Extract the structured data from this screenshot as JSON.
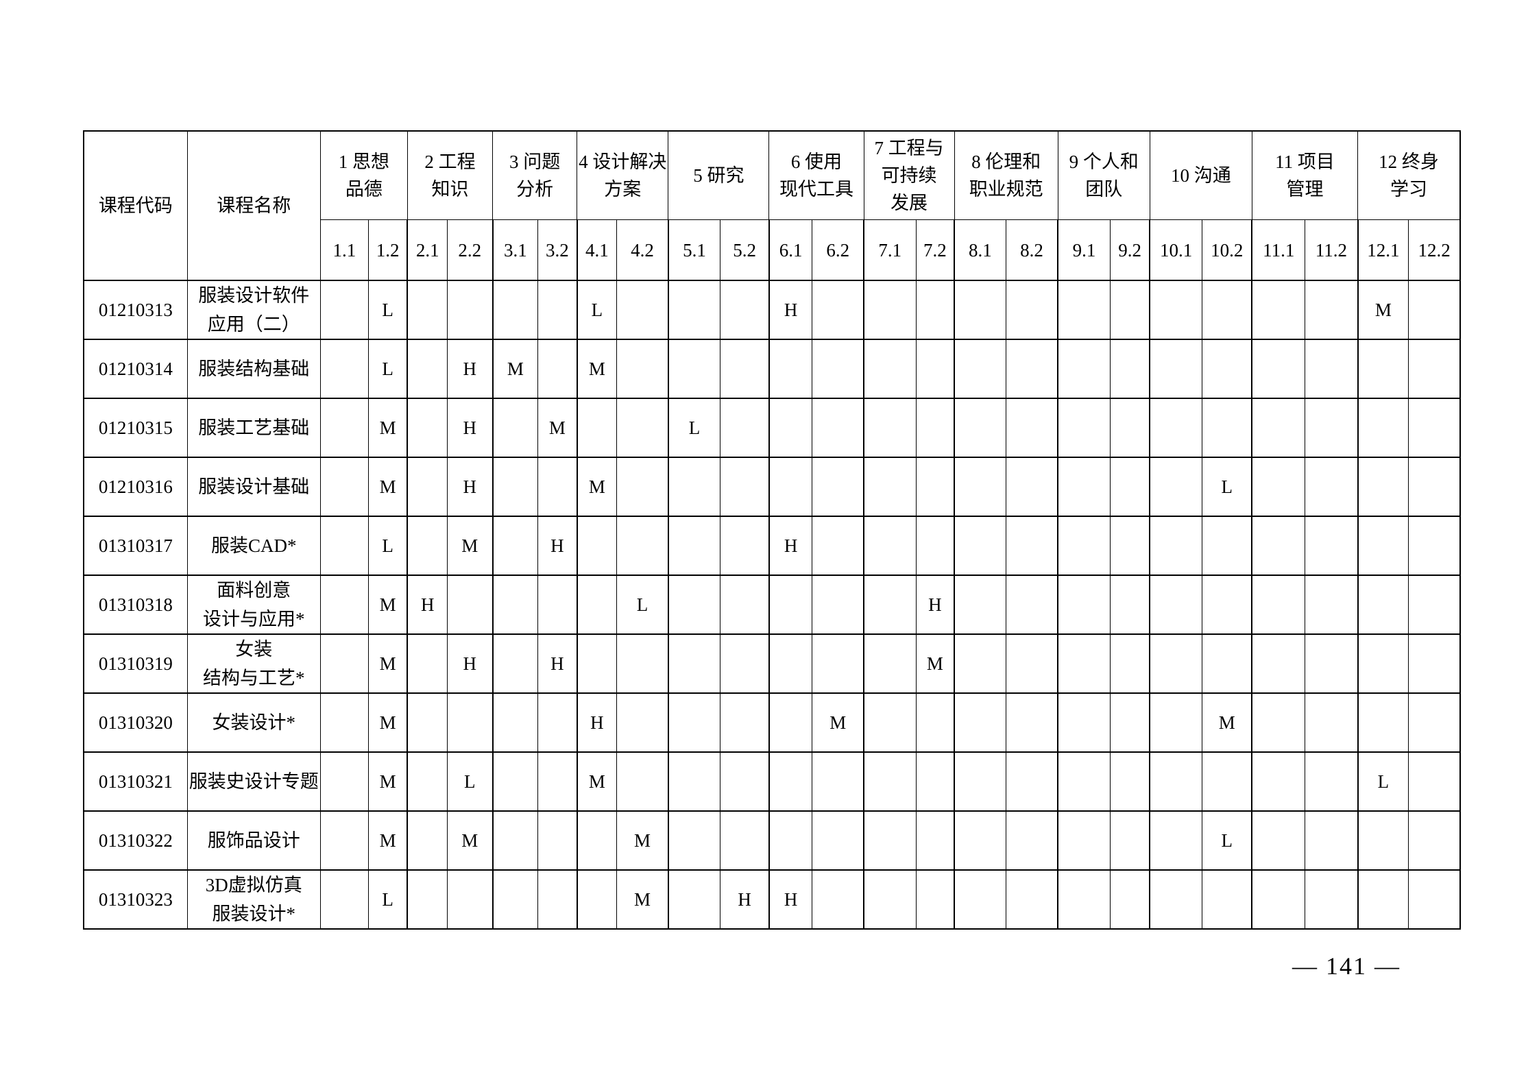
{
  "table": {
    "header": {
      "code_label": "课程代码",
      "name_label": "课程名称",
      "groups": [
        "1 思想\n品德",
        "2 工程\n知识",
        "3 问题\n分析",
        "4 设计解决\n方案",
        "5 研究",
        "6 使用\n现代工具",
        "7 工程与\n可持续\n发展",
        "8 伦理和\n职业规范",
        "9 个人和\n团队",
        "10 沟通",
        "11 项目\n管理",
        "12 终身\n学习"
      ],
      "indicators": [
        "1.1",
        "1.2",
        "2.1",
        "2.2",
        "3.1",
        "3.2",
        "4.1",
        "4.2",
        "5.1",
        "5.2",
        "6.1",
        "6.2",
        "7.1",
        "7.2",
        "8.1",
        "8.2",
        "9.1",
        "9.2",
        "10.1",
        "10.2",
        "11.1",
        "11.2",
        "12.1",
        "12.2"
      ]
    },
    "rows": [
      {
        "code": "01210313",
        "name": "服装设计软件\n应用（二）",
        "marks": [
          "",
          "L",
          "",
          "",
          "",
          "",
          "L",
          "",
          "",
          "",
          "H",
          "",
          "",
          "",
          "",
          "",
          "",
          "",
          "",
          "",
          "",
          "",
          "M",
          ""
        ]
      },
      {
        "code": "01210314",
        "name": "服装结构基础",
        "marks": [
          "",
          "L",
          "",
          "H",
          "M",
          "",
          "M",
          "",
          "",
          "",
          "",
          "",
          "",
          "",
          "",
          "",
          "",
          "",
          "",
          "",
          "",
          "",
          "",
          ""
        ]
      },
      {
        "code": "01210315",
        "name": "服装工艺基础",
        "marks": [
          "",
          "M",
          "",
          "H",
          "",
          "M",
          "",
          "",
          "L",
          "",
          "",
          "",
          "",
          "",
          "",
          "",
          "",
          "",
          "",
          "",
          "",
          "",
          "",
          ""
        ]
      },
      {
        "code": "01210316",
        "name": "服装设计基础",
        "marks": [
          "",
          "M",
          "",
          "H",
          "",
          "",
          "M",
          "",
          "",
          "",
          "",
          "",
          "",
          "",
          "",
          "",
          "",
          "",
          "",
          "L",
          "",
          "",
          "",
          ""
        ]
      },
      {
        "code": "01310317",
        "name": "服装CAD*",
        "marks": [
          "",
          "L",
          "",
          "M",
          "",
          "H",
          "",
          "",
          "",
          "",
          "H",
          "",
          "",
          "",
          "",
          "",
          "",
          "",
          "",
          "",
          "",
          "",
          "",
          ""
        ]
      },
      {
        "code": "01310318",
        "name": "面料创意\n设计与应用*",
        "marks": [
          "",
          "M",
          "H",
          "",
          "",
          "",
          "",
          "L",
          "",
          "",
          "",
          "",
          "",
          "H",
          "",
          "",
          "",
          "",
          "",
          "",
          "",
          "",
          "",
          ""
        ]
      },
      {
        "code": "01310319",
        "name": "女装\n结构与工艺*",
        "marks": [
          "",
          "M",
          "",
          "H",
          "",
          "H",
          "",
          "",
          "",
          "",
          "",
          "",
          "",
          "M",
          "",
          "",
          "",
          "",
          "",
          "",
          "",
          "",
          "",
          ""
        ]
      },
      {
        "code": "01310320",
        "name": "女装设计*",
        "marks": [
          "",
          "M",
          "",
          "",
          "",
          "",
          "H",
          "",
          "",
          "",
          "",
          "M",
          "",
          "",
          "",
          "",
          "",
          "",
          "",
          "M",
          "",
          "",
          "",
          ""
        ]
      },
      {
        "code": "01310321",
        "name": "服装史设计专题",
        "marks": [
          "",
          "M",
          "",
          "L",
          "",
          "",
          "M",
          "",
          "",
          "",
          "",
          "",
          "",
          "",
          "",
          "",
          "",
          "",
          "",
          "",
          "",
          "",
          "L",
          ""
        ]
      },
      {
        "code": "01310322",
        "name": "服饰品设计",
        "marks": [
          "",
          "M",
          "",
          "M",
          "",
          "",
          "",
          "M",
          "",
          "",
          "",
          "",
          "",
          "",
          "",
          "",
          "",
          "",
          "",
          "L",
          "",
          "",
          "",
          ""
        ]
      },
      {
        "code": "01310323",
        "name": "3D虚拟仿真\n服装设计*",
        "marks": [
          "",
          "L",
          "",
          "",
          "",
          "",
          "",
          "M",
          "",
          "H",
          "H",
          "",
          "",
          "",
          "",
          "",
          "",
          "",
          "",
          "",
          "",
          "",
          "",
          ""
        ]
      }
    ]
  },
  "footer": {
    "page_number": "— 141 —"
  }
}
